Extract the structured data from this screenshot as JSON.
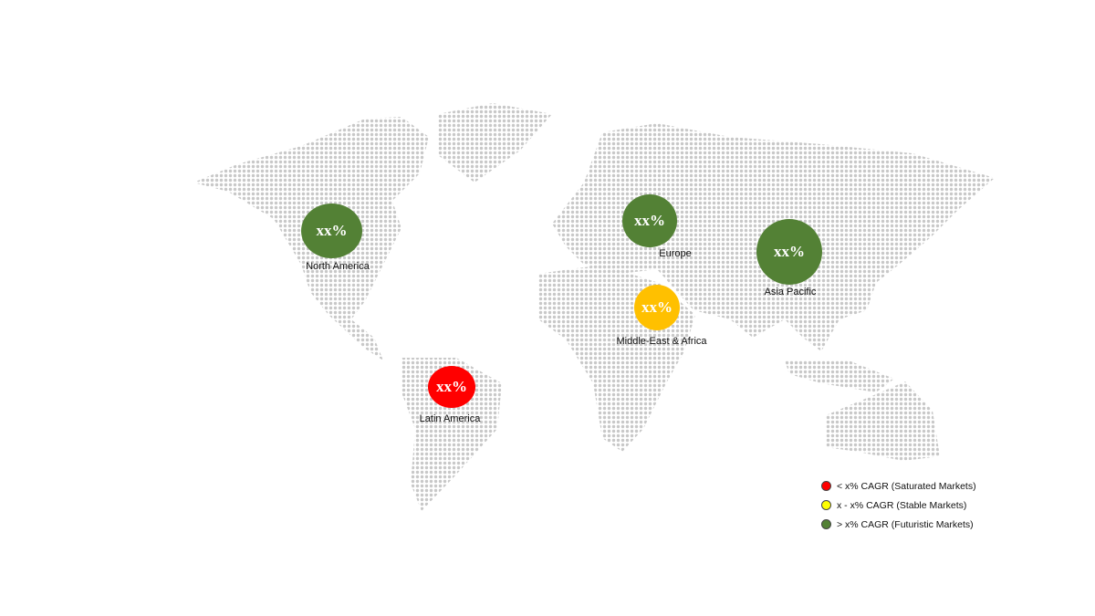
{
  "colors": {
    "saturated": "#ff0000",
    "stable": "#ffc000",
    "futuristic": "#538135",
    "stable_legend": "#ffff00",
    "map_dots": "#c8c8c8"
  },
  "regions": [
    {
      "name": "North America",
      "value": "xx%",
      "category": "futuristic"
    },
    {
      "name": "Europe",
      "value": "xx%",
      "category": "futuristic"
    },
    {
      "name": "Asia Pacific",
      "value": "xx%",
      "category": "futuristic"
    },
    {
      "name": "Middle-East & Africa",
      "value": "xx%",
      "category": "stable"
    },
    {
      "name": "Latin America",
      "value": "xx%",
      "category": "saturated"
    }
  ],
  "legend": [
    {
      "label": "< x% CAGR (Saturated Markets)",
      "color": "#ff0000"
    },
    {
      "label": "x - x% CAGR (Stable Markets)",
      "color": "#ffff00"
    },
    {
      "label": "> x% CAGR (Futuristic Markets)",
      "color": "#538135"
    }
  ]
}
